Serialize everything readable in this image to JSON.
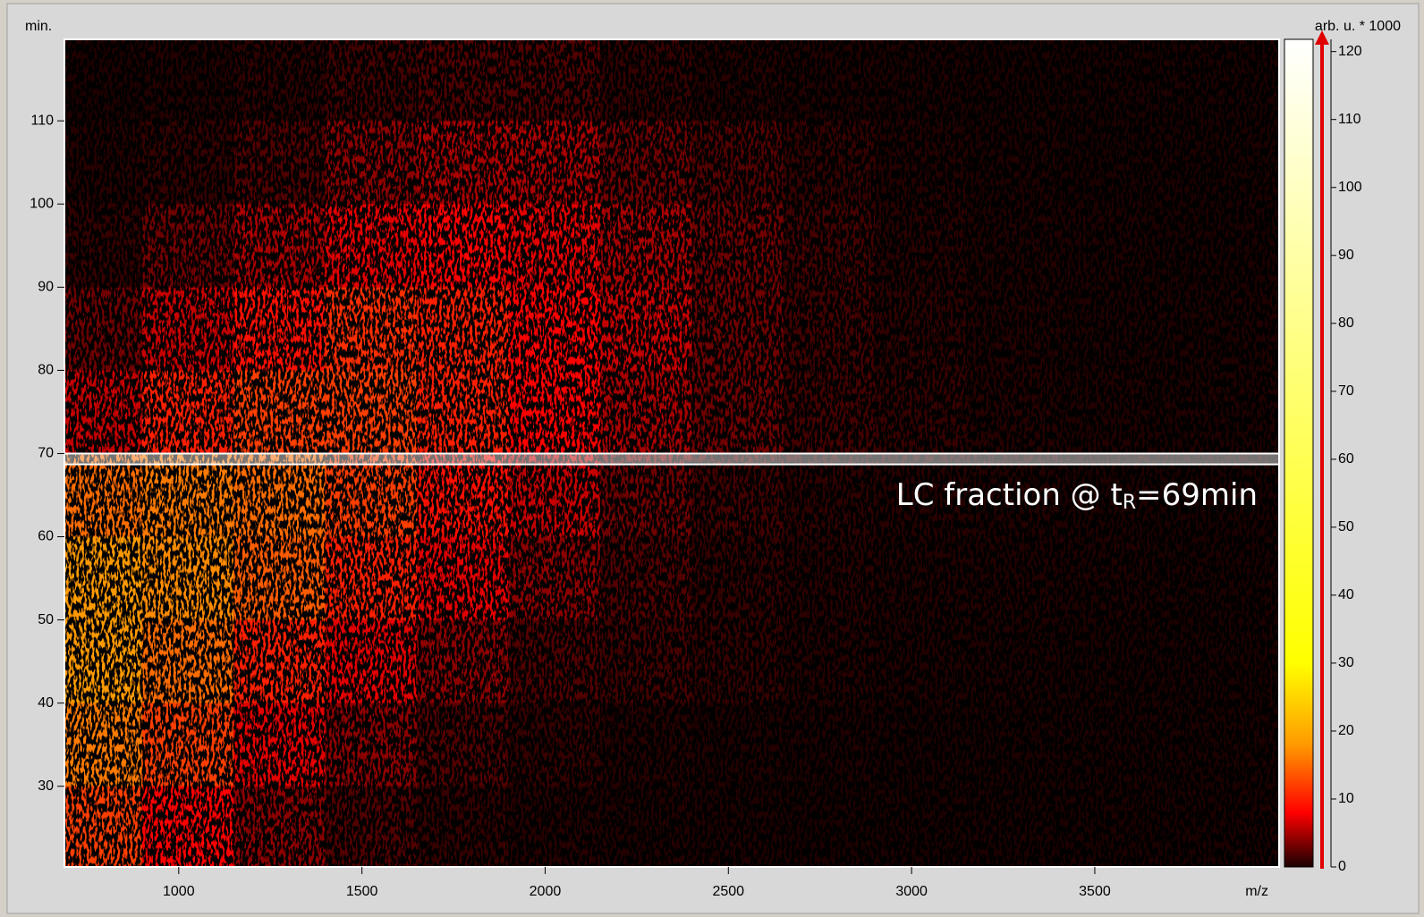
{
  "chart_data": {
    "type": "heatmap",
    "y_label": "min.",
    "x_label": "m/z",
    "colorbar_label": "arb. u. * 1000",
    "annotation": [
      "LC fraction @ t",
      "R",
      "=69min"
    ],
    "highlight": [
      68.7,
      70.0
    ],
    "xlim": [
      688,
      4003
    ],
    "ylim": [
      20.3,
      119.8
    ],
    "xticks": [
      1000,
      1500,
      2000,
      2500,
      3000,
      3500
    ],
    "yticks": [
      30,
      40,
      50,
      60,
      70,
      80,
      90,
      100,
      110
    ],
    "clim": [
      0,
      121.8
    ],
    "cticks": [
      0,
      10,
      20,
      30,
      40,
      50,
      60,
      70,
      80,
      90,
      100,
      110,
      120
    ],
    "colormap": [
      "#1a0000",
      "#ff0000",
      "#ff9a00",
      "#ffff00",
      "#ffffff"
    ],
    "colormap_stops": [
      0,
      8,
      18,
      30,
      121.8
    ],
    "x_bins": [
      688,
      900,
      1150,
      1400,
      1650,
      1900,
      2150,
      2400,
      2650,
      2900,
      3150,
      3400,
      3650,
      4003
    ],
    "y_bins": [
      20.3,
      30,
      40,
      50,
      60,
      70,
      80,
      90,
      100,
      110,
      119.8
    ],
    "z": [
      [
        12,
        8,
        4,
        2,
        1,
        0.5,
        0.3,
        0.2,
        0.1,
        0.1,
        0.1,
        0.1,
        0.1
      ],
      [
        16,
        12,
        7,
        4,
        2,
        1,
        0.5,
        0.3,
        0.2,
        0.1,
        0.1,
        0.1,
        0.1
      ],
      [
        18,
        15,
        10,
        7,
        4,
        2,
        1.5,
        1,
        0.5,
        0.3,
        0.2,
        0.1,
        0.1
      ],
      [
        18,
        17,
        14,
        10,
        7,
        4,
        2,
        1,
        0.6,
        0.4,
        0.3,
        0.2,
        0.1
      ],
      [
        15,
        16,
        15,
        12,
        9,
        6,
        3,
        1.5,
        0.8,
        0.5,
        0.4,
        0.2,
        0.1
      ],
      [
        6,
        10,
        12,
        12,
        10,
        8,
        5,
        3,
        1.5,
        1,
        0.5,
        0.3,
        0.2
      ],
      [
        3,
        6,
        9,
        11,
        10,
        8,
        6,
        3,
        1.5,
        0.8,
        0.4,
        0.2,
        0.2
      ],
      [
        1,
        3,
        5,
        7,
        8,
        7,
        5,
        3,
        1.5,
        0.6,
        0.3,
        0.2,
        0.1
      ],
      [
        0.5,
        1,
        2,
        4,
        5,
        5,
        3,
        2,
        1,
        0.4,
        0.2,
        0.1,
        0.1
      ],
      [
        0.2,
        0.4,
        0.8,
        1.5,
        2,
        2,
        1,
        0.5,
        0.3,
        0.2,
        0.1,
        0.1,
        0.1
      ]
    ]
  }
}
